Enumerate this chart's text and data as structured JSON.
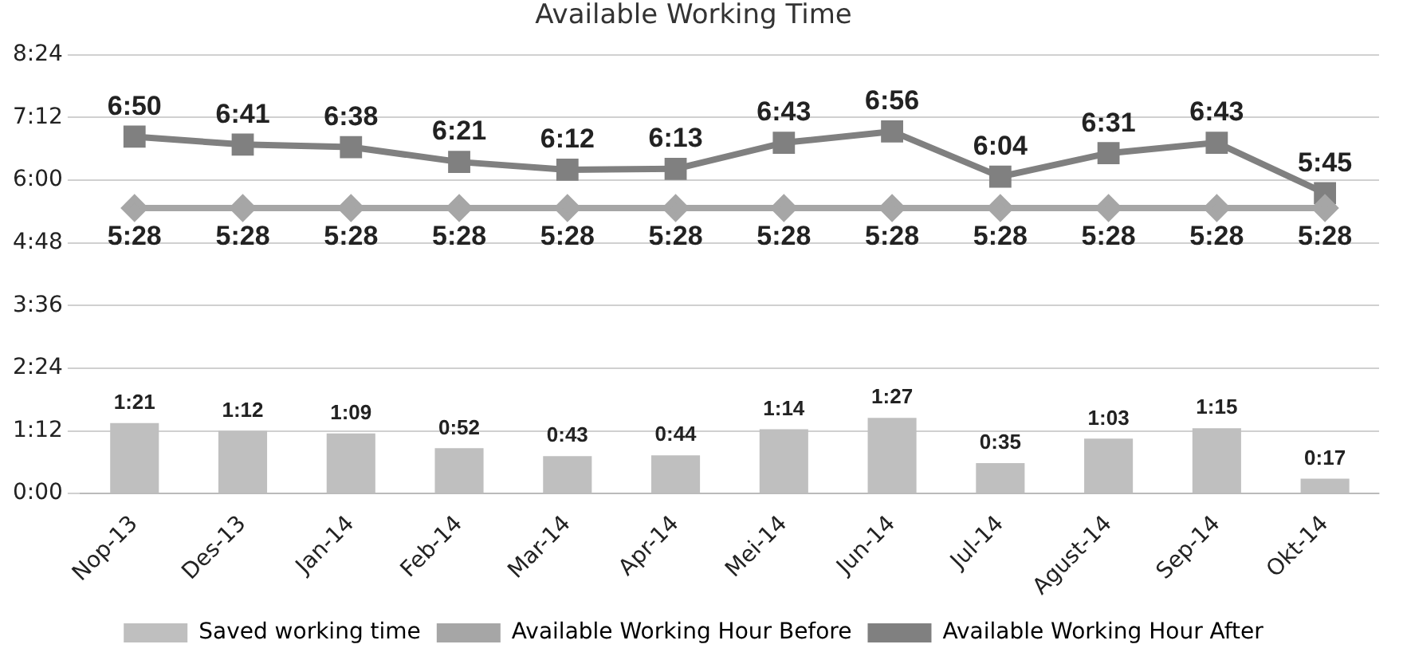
{
  "chart_data": {
    "type": "bar",
    "title": "Available Working Time",
    "categories": [
      "Nop-13",
      "Des-13",
      "Jan-14",
      "Feb-14",
      "Mar-14",
      "Apr-14",
      "Mei-14",
      "Jun-14",
      "Jul-14",
      "Agust-14",
      "Sep-14",
      "Okt-14"
    ],
    "series": [
      {
        "name": "Saved working time",
        "color": "#bfbfbf",
        "values": [
          1.35,
          1.2,
          1.15,
          0.867,
          0.717,
          0.733,
          1.233,
          1.45,
          0.583,
          1.05,
          1.25,
          0.283
        ],
        "value_labels": [
          "1:21",
          "1:12",
          "1:09",
          "0:52",
          "0:43",
          "0:44",
          "1:14",
          "1:27",
          "0:35",
          "1:03",
          "1:15",
          "0:17"
        ]
      },
      {
        "name": "Available Working Hour Before",
        "type": "line",
        "color": "#a6a6a6",
        "marker": "diamond",
        "values": [
          5.467,
          5.467,
          5.467,
          5.467,
          5.467,
          5.467,
          5.467,
          5.467,
          5.467,
          5.467,
          5.467,
          5.467
        ],
        "value_labels": [
          "5:28",
          "5:28",
          "5:28",
          "5:28",
          "5:28",
          "5:28",
          "5:28",
          "5:28",
          "5:28",
          "5:28",
          "5:28",
          "5:28"
        ]
      },
      {
        "name": "Available Working Hour After",
        "type": "line",
        "color": "#808080",
        "marker": "square",
        "values": [
          6.833,
          6.683,
          6.633,
          6.35,
          6.2,
          6.217,
          6.717,
          6.933,
          6.067,
          6.517,
          6.717,
          5.75
        ],
        "value_labels": [
          "6:50",
          "6:41",
          "6:38",
          "6:21",
          "6:12",
          "6:13",
          "6:43",
          "6:56",
          "6:04",
          "6:31",
          "6:43",
          "5:45"
        ]
      }
    ],
    "ylim": [
      0,
      8.4
    ],
    "yticks": [
      {
        "value": 0,
        "label": "0:00"
      },
      {
        "value": 1.2,
        "label": "1:12"
      },
      {
        "value": 2.4,
        "label": "2:24"
      },
      {
        "value": 3.6,
        "label": "3:36"
      },
      {
        "value": 4.8,
        "label": "4:48"
      },
      {
        "value": 6,
        "label": "6:00"
      },
      {
        "value": 7.2,
        "label": "7:12"
      },
      {
        "value": 8.4,
        "label": "8:24"
      }
    ],
    "grid": "y",
    "legend": "bottom"
  }
}
